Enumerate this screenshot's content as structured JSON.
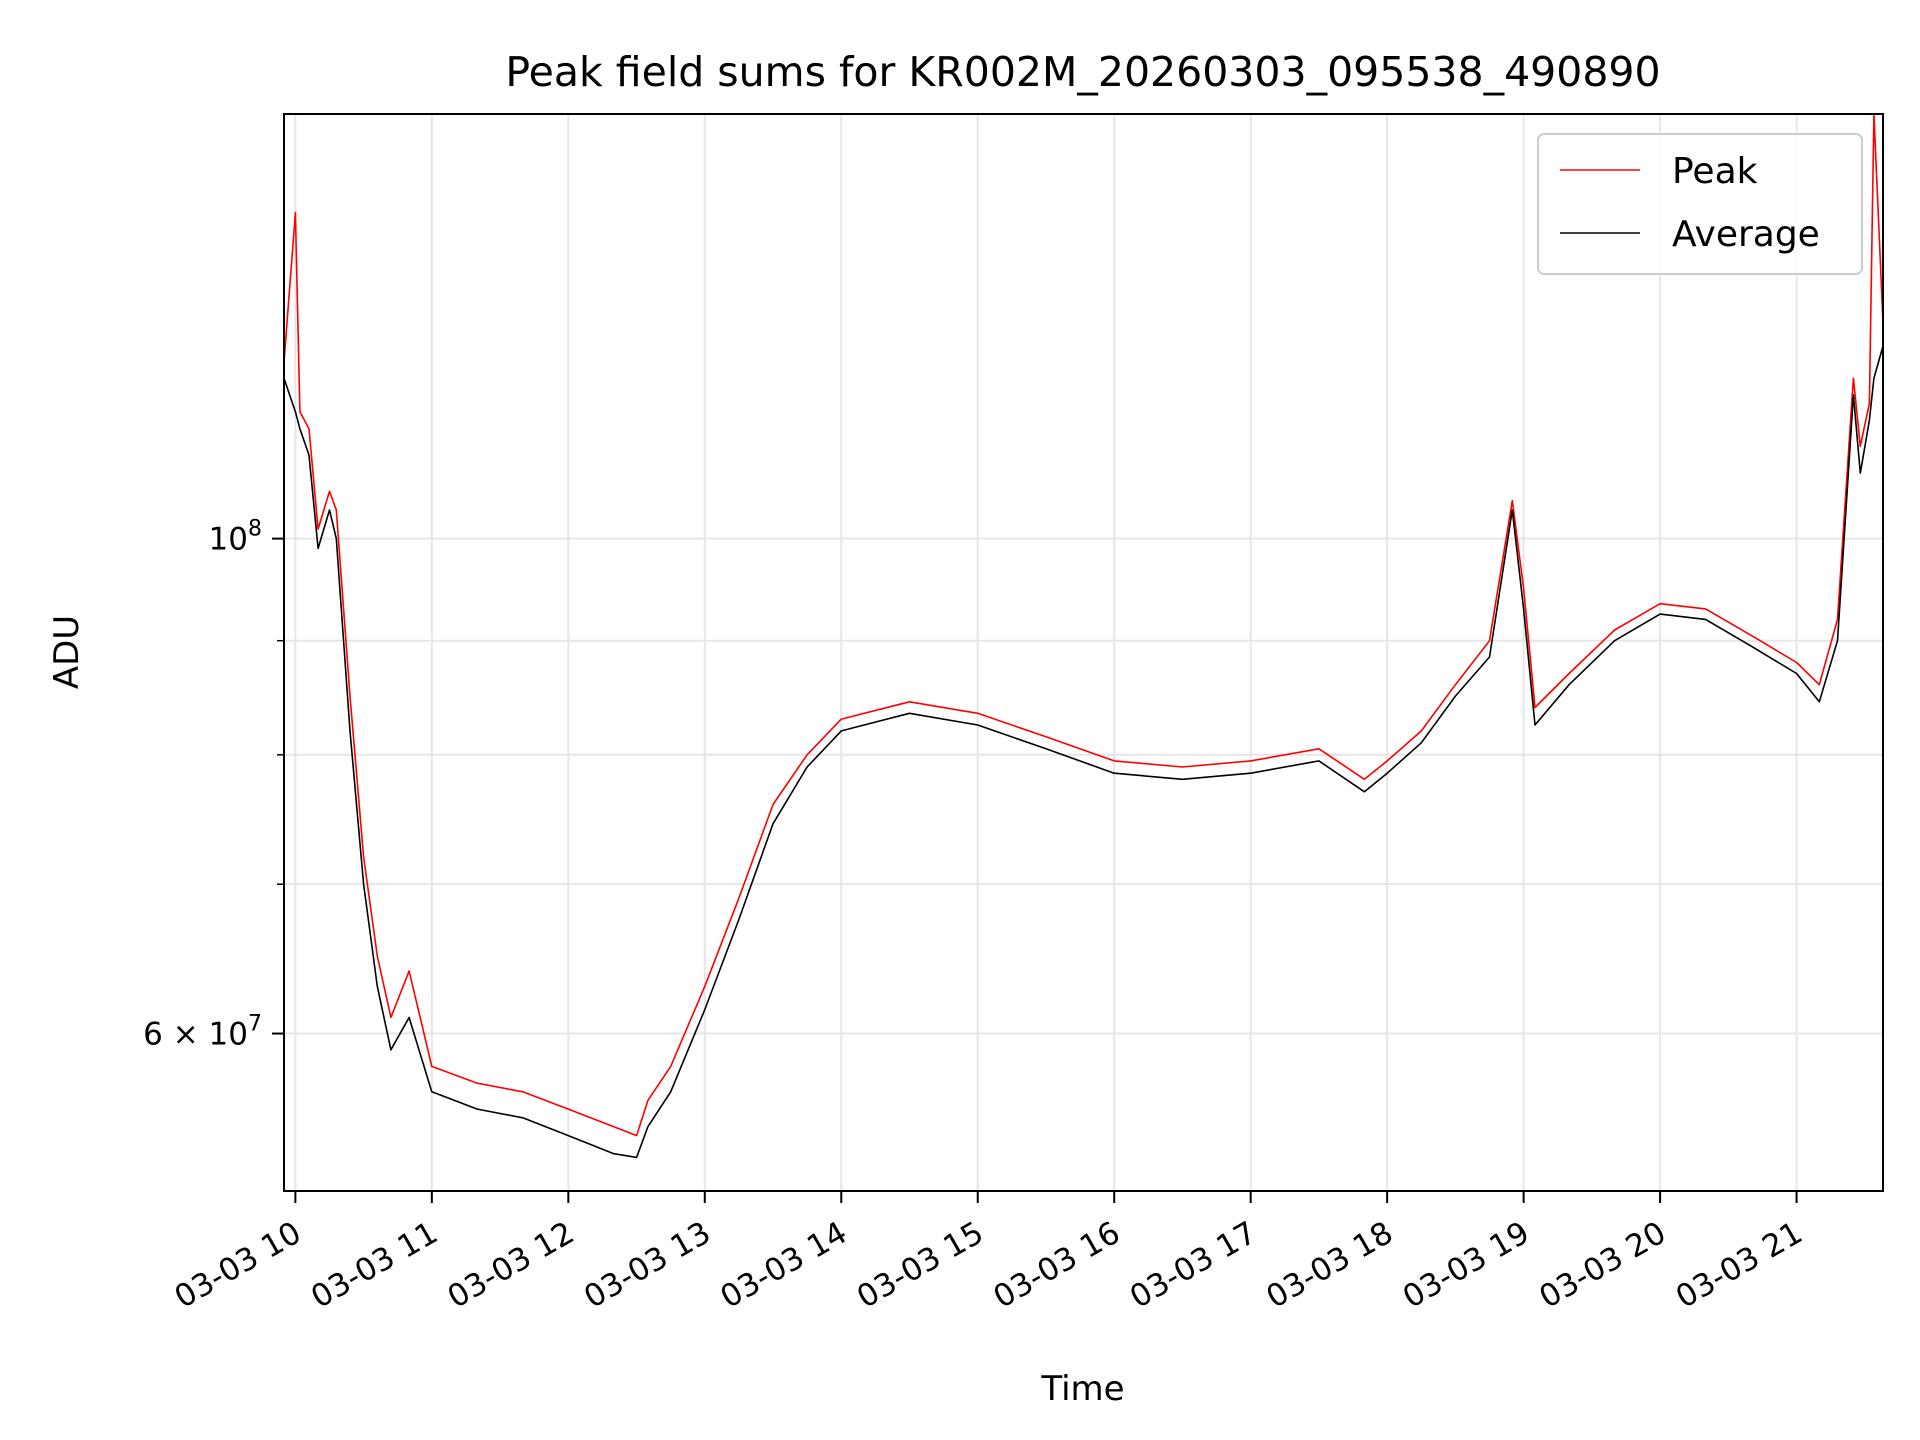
{
  "chart_data": {
    "type": "line",
    "title": "Peak field sums for KR002M_20260303_095538_490890",
    "xlabel": "Time",
    "ylabel": "ADU",
    "x_scale": "time",
    "y_scale": "log",
    "xlim": [
      "2026-03-03 09:55",
      "2026-03-03 21:38"
    ],
    "ylim": [
      51000000,
      155000000
    ],
    "grid": true,
    "legend_position": "upper right",
    "x_ticks": [
      {
        "t": "2026-03-03 10:00",
        "label": "03-03 10"
      },
      {
        "t": "2026-03-03 11:00",
        "label": "03-03 11"
      },
      {
        "t": "2026-03-03 12:00",
        "label": "03-03 12"
      },
      {
        "t": "2026-03-03 13:00",
        "label": "03-03 13"
      },
      {
        "t": "2026-03-03 14:00",
        "label": "03-03 14"
      },
      {
        "t": "2026-03-03 15:00",
        "label": "03-03 15"
      },
      {
        "t": "2026-03-03 16:00",
        "label": "03-03 16"
      },
      {
        "t": "2026-03-03 17:00",
        "label": "03-03 17"
      },
      {
        "t": "2026-03-03 18:00",
        "label": "03-03 18"
      },
      {
        "t": "2026-03-03 19:00",
        "label": "03-03 19"
      },
      {
        "t": "2026-03-03 20:00",
        "label": "03-03 20"
      },
      {
        "t": "2026-03-03 21:00",
        "label": "03-03 21"
      }
    ],
    "y_major_ticks": [
      {
        "v": 60000000,
        "base": "6 × 10",
        "exp": "7"
      },
      {
        "v": 100000000,
        "base": "10",
        "exp": "8"
      }
    ],
    "y_minor_ticks": [
      70000000,
      80000000,
      90000000
    ],
    "series": [
      {
        "name": "Peak",
        "color": "#ff0000",
        "points": [
          [
            "2026-03-03 09:55",
            120000000
          ],
          [
            "2026-03-03 10:00",
            140000000
          ],
          [
            "2026-03-03 10:02",
            114000000
          ],
          [
            "2026-03-03 10:06",
            112000000
          ],
          [
            "2026-03-03 10:10",
            101000000
          ],
          [
            "2026-03-03 10:15",
            105000000
          ],
          [
            "2026-03-03 10:18",
            103000000
          ],
          [
            "2026-03-03 10:24",
            85000000
          ],
          [
            "2026-03-03 10:30",
            72000000
          ],
          [
            "2026-03-03 10:36",
            65000000
          ],
          [
            "2026-03-03 10:42",
            61000000
          ],
          [
            "2026-03-03 10:50",
            64000000
          ],
          [
            "2026-03-03 11:00",
            58000000
          ],
          [
            "2026-03-03 11:20",
            57000000
          ],
          [
            "2026-03-03 11:40",
            56500000
          ],
          [
            "2026-03-03 12:00",
            55500000
          ],
          [
            "2026-03-03 12:20",
            54500000
          ],
          [
            "2026-03-03 12:30",
            54000000
          ],
          [
            "2026-03-03 12:35",
            56000000
          ],
          [
            "2026-03-03 12:45",
            58000000
          ],
          [
            "2026-03-03 13:00",
            63000000
          ],
          [
            "2026-03-03 13:15",
            69000000
          ],
          [
            "2026-03-03 13:30",
            76000000
          ],
          [
            "2026-03-03 13:45",
            80000000
          ],
          [
            "2026-03-03 14:00",
            83000000
          ],
          [
            "2026-03-03 14:30",
            84500000
          ],
          [
            "2026-03-03 15:00",
            83500000
          ],
          [
            "2026-03-03 15:30",
            81500000
          ],
          [
            "2026-03-03 16:00",
            79500000
          ],
          [
            "2026-03-03 16:30",
            79000000
          ],
          [
            "2026-03-03 17:00",
            79500000
          ],
          [
            "2026-03-03 17:30",
            80500000
          ],
          [
            "2026-03-03 17:50",
            78000000
          ],
          [
            "2026-03-03 18:00",
            79500000
          ],
          [
            "2026-03-03 18:15",
            82000000
          ],
          [
            "2026-03-03 18:30",
            86000000
          ],
          [
            "2026-03-03 18:45",
            90000000
          ],
          [
            "2026-03-03 18:55",
            104000000
          ],
          [
            "2026-03-03 19:00",
            95000000
          ],
          [
            "2026-03-03 19:05",
            84000000
          ],
          [
            "2026-03-03 19:20",
            87000000
          ],
          [
            "2026-03-03 19:40",
            91000000
          ],
          [
            "2026-03-03 20:00",
            93500000
          ],
          [
            "2026-03-03 20:20",
            93000000
          ],
          [
            "2026-03-03 20:40",
            90500000
          ],
          [
            "2026-03-03 21:00",
            88000000
          ],
          [
            "2026-03-03 21:10",
            86000000
          ],
          [
            "2026-03-03 21:18",
            92000000
          ],
          [
            "2026-03-03 21:25",
            118000000
          ],
          [
            "2026-03-03 21:28",
            110000000
          ],
          [
            "2026-03-03 21:32",
            115000000
          ],
          [
            "2026-03-03 21:34",
            155000000
          ],
          [
            "2026-03-03 21:38",
            125000000
          ]
        ]
      },
      {
        "name": "Average",
        "color": "#000000",
        "points": [
          [
            "2026-03-03 09:55",
            118000000
          ],
          [
            "2026-03-03 10:00",
            114000000
          ],
          [
            "2026-03-03 10:02",
            112000000
          ],
          [
            "2026-03-03 10:06",
            109000000
          ],
          [
            "2026-03-03 10:10",
            99000000
          ],
          [
            "2026-03-03 10:15",
            103000000
          ],
          [
            "2026-03-03 10:18",
            100000000
          ],
          [
            "2026-03-03 10:24",
            82000000
          ],
          [
            "2026-03-03 10:30",
            70000000
          ],
          [
            "2026-03-03 10:36",
            63000000
          ],
          [
            "2026-03-03 10:42",
            59000000
          ],
          [
            "2026-03-03 10:50",
            61000000
          ],
          [
            "2026-03-03 11:00",
            56500000
          ],
          [
            "2026-03-03 11:20",
            55500000
          ],
          [
            "2026-03-03 11:40",
            55000000
          ],
          [
            "2026-03-03 12:00",
            54000000
          ],
          [
            "2026-03-03 12:20",
            53000000
          ],
          [
            "2026-03-03 12:30",
            52800000
          ],
          [
            "2026-03-03 12:35",
            54500000
          ],
          [
            "2026-03-03 12:45",
            56500000
          ],
          [
            "2026-03-03 13:00",
            61500000
          ],
          [
            "2026-03-03 13:15",
            67500000
          ],
          [
            "2026-03-03 13:30",
            74500000
          ],
          [
            "2026-03-03 13:45",
            79000000
          ],
          [
            "2026-03-03 14:00",
            82000000
          ],
          [
            "2026-03-03 14:30",
            83500000
          ],
          [
            "2026-03-03 15:00",
            82500000
          ],
          [
            "2026-03-03 15:30",
            80500000
          ],
          [
            "2026-03-03 16:00",
            78500000
          ],
          [
            "2026-03-03 16:30",
            78000000
          ],
          [
            "2026-03-03 17:00",
            78500000
          ],
          [
            "2026-03-03 17:30",
            79500000
          ],
          [
            "2026-03-03 17:50",
            77000000
          ],
          [
            "2026-03-03 18:00",
            78500000
          ],
          [
            "2026-03-03 18:15",
            81000000
          ],
          [
            "2026-03-03 18:30",
            85000000
          ],
          [
            "2026-03-03 18:45",
            88500000
          ],
          [
            "2026-03-03 18:55",
            103000000
          ],
          [
            "2026-03-03 19:00",
            93000000
          ],
          [
            "2026-03-03 19:05",
            82500000
          ],
          [
            "2026-03-03 19:20",
            86000000
          ],
          [
            "2026-03-03 19:40",
            90000000
          ],
          [
            "2026-03-03 20:00",
            92500000
          ],
          [
            "2026-03-03 20:20",
            92000000
          ],
          [
            "2026-03-03 20:40",
            89500000
          ],
          [
            "2026-03-03 21:00",
            87000000
          ],
          [
            "2026-03-03 21:10",
            84500000
          ],
          [
            "2026-03-03 21:18",
            90000000
          ],
          [
            "2026-03-03 21:25",
            116000000
          ],
          [
            "2026-03-03 21:28",
            107000000
          ],
          [
            "2026-03-03 21:32",
            113000000
          ],
          [
            "2026-03-03 21:34",
            118000000
          ],
          [
            "2026-03-03 21:38",
            122000000
          ]
        ]
      }
    ]
  }
}
